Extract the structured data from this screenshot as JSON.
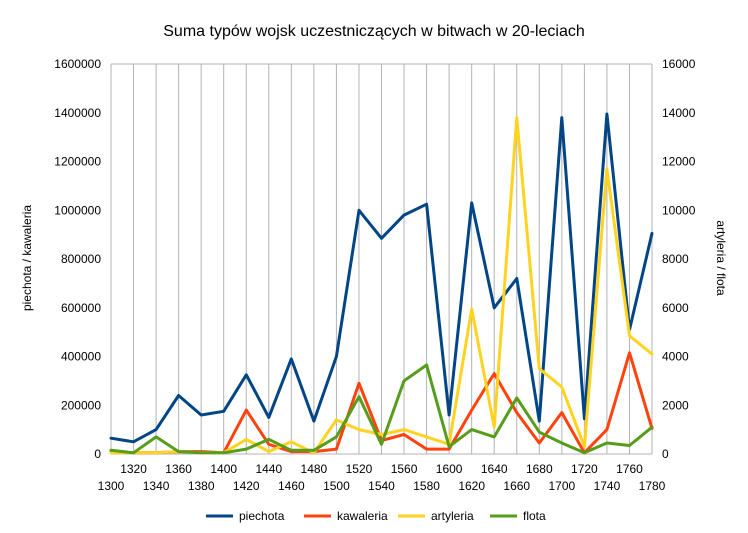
{
  "chart_data": {
    "type": "line",
    "title": "Suma typów wojsk uczestniczących w bitwach w 20-leciach",
    "ylabel_left": "piechota / kawaleria",
    "ylabel_right": "artyleria / flota",
    "x": [
      1300,
      1320,
      1340,
      1360,
      1380,
      1400,
      1420,
      1440,
      1460,
      1480,
      1500,
      1520,
      1540,
      1560,
      1580,
      1600,
      1620,
      1640,
      1660,
      1680,
      1700,
      1720,
      1740,
      1760,
      1780
    ],
    "x_tick_labels_upper": [
      "1320",
      "1360",
      "1400",
      "1440",
      "1480",
      "1520",
      "1560",
      "1600",
      "1640",
      "1680",
      "1720",
      "1760"
    ],
    "x_tick_labels_lower": [
      "1300",
      "1340",
      "1380",
      "1420",
      "1460",
      "1500",
      "1540",
      "1580",
      "1620",
      "1660",
      "1700",
      "1740",
      "1780"
    ],
    "y_left_ticks": [
      "0",
      "200000",
      "400000",
      "600000",
      "800000",
      "1000000",
      "1200000",
      "1400000",
      "1600000"
    ],
    "y_right_ticks": [
      "0",
      "2000",
      "4000",
      "6000",
      "8000",
      "10000",
      "12000",
      "14000",
      "16000"
    ],
    "y_left_range": [
      0,
      1600000
    ],
    "y_right_range": [
      0,
      16000
    ],
    "legend_position": "bottom",
    "grid": "vertical",
    "series": [
      {
        "name": "piechota",
        "axis": "left",
        "color": "#004586",
        "values": [
          65000,
          50000,
          100000,
          240000,
          160000,
          175000,
          325000,
          150000,
          390000,
          135000,
          400000,
          1000000,
          885000,
          980000,
          1025000,
          160000,
          1030000,
          600000,
          720000,
          135000,
          1380000,
          145000,
          1395000,
          510000,
          905000
        ]
      },
      {
        "name": "kawaleria",
        "axis": "left",
        "color": "#ff420e",
        "values": [
          10000,
          5000,
          5000,
          10000,
          10000,
          5000,
          180000,
          40000,
          10000,
          10000,
          20000,
          290000,
          55000,
          80000,
          20000,
          20000,
          180000,
          330000,
          170000,
          45000,
          170000,
          5000,
          100000,
          415000,
          105000
        ]
      },
      {
        "name": "artyleria",
        "axis": "right",
        "color": "#ffd320",
        "values": [
          50,
          50,
          50,
          100,
          50,
          50,
          600,
          100,
          500,
          50,
          1400,
          1000,
          800,
          1000,
          700,
          400,
          5950,
          1100,
          13800,
          3500,
          2750,
          300,
          11700,
          4850,
          4100
        ]
      },
      {
        "name": "flota",
        "axis": "right",
        "color": "#579d1c",
        "values": [
          150,
          50,
          700,
          100,
          50,
          50,
          200,
          600,
          150,
          150,
          700,
          2350,
          400,
          3000,
          3650,
          300,
          1000,
          700,
          2300,
          900,
          450,
          50,
          450,
          350,
          1100
        ]
      }
    ]
  }
}
